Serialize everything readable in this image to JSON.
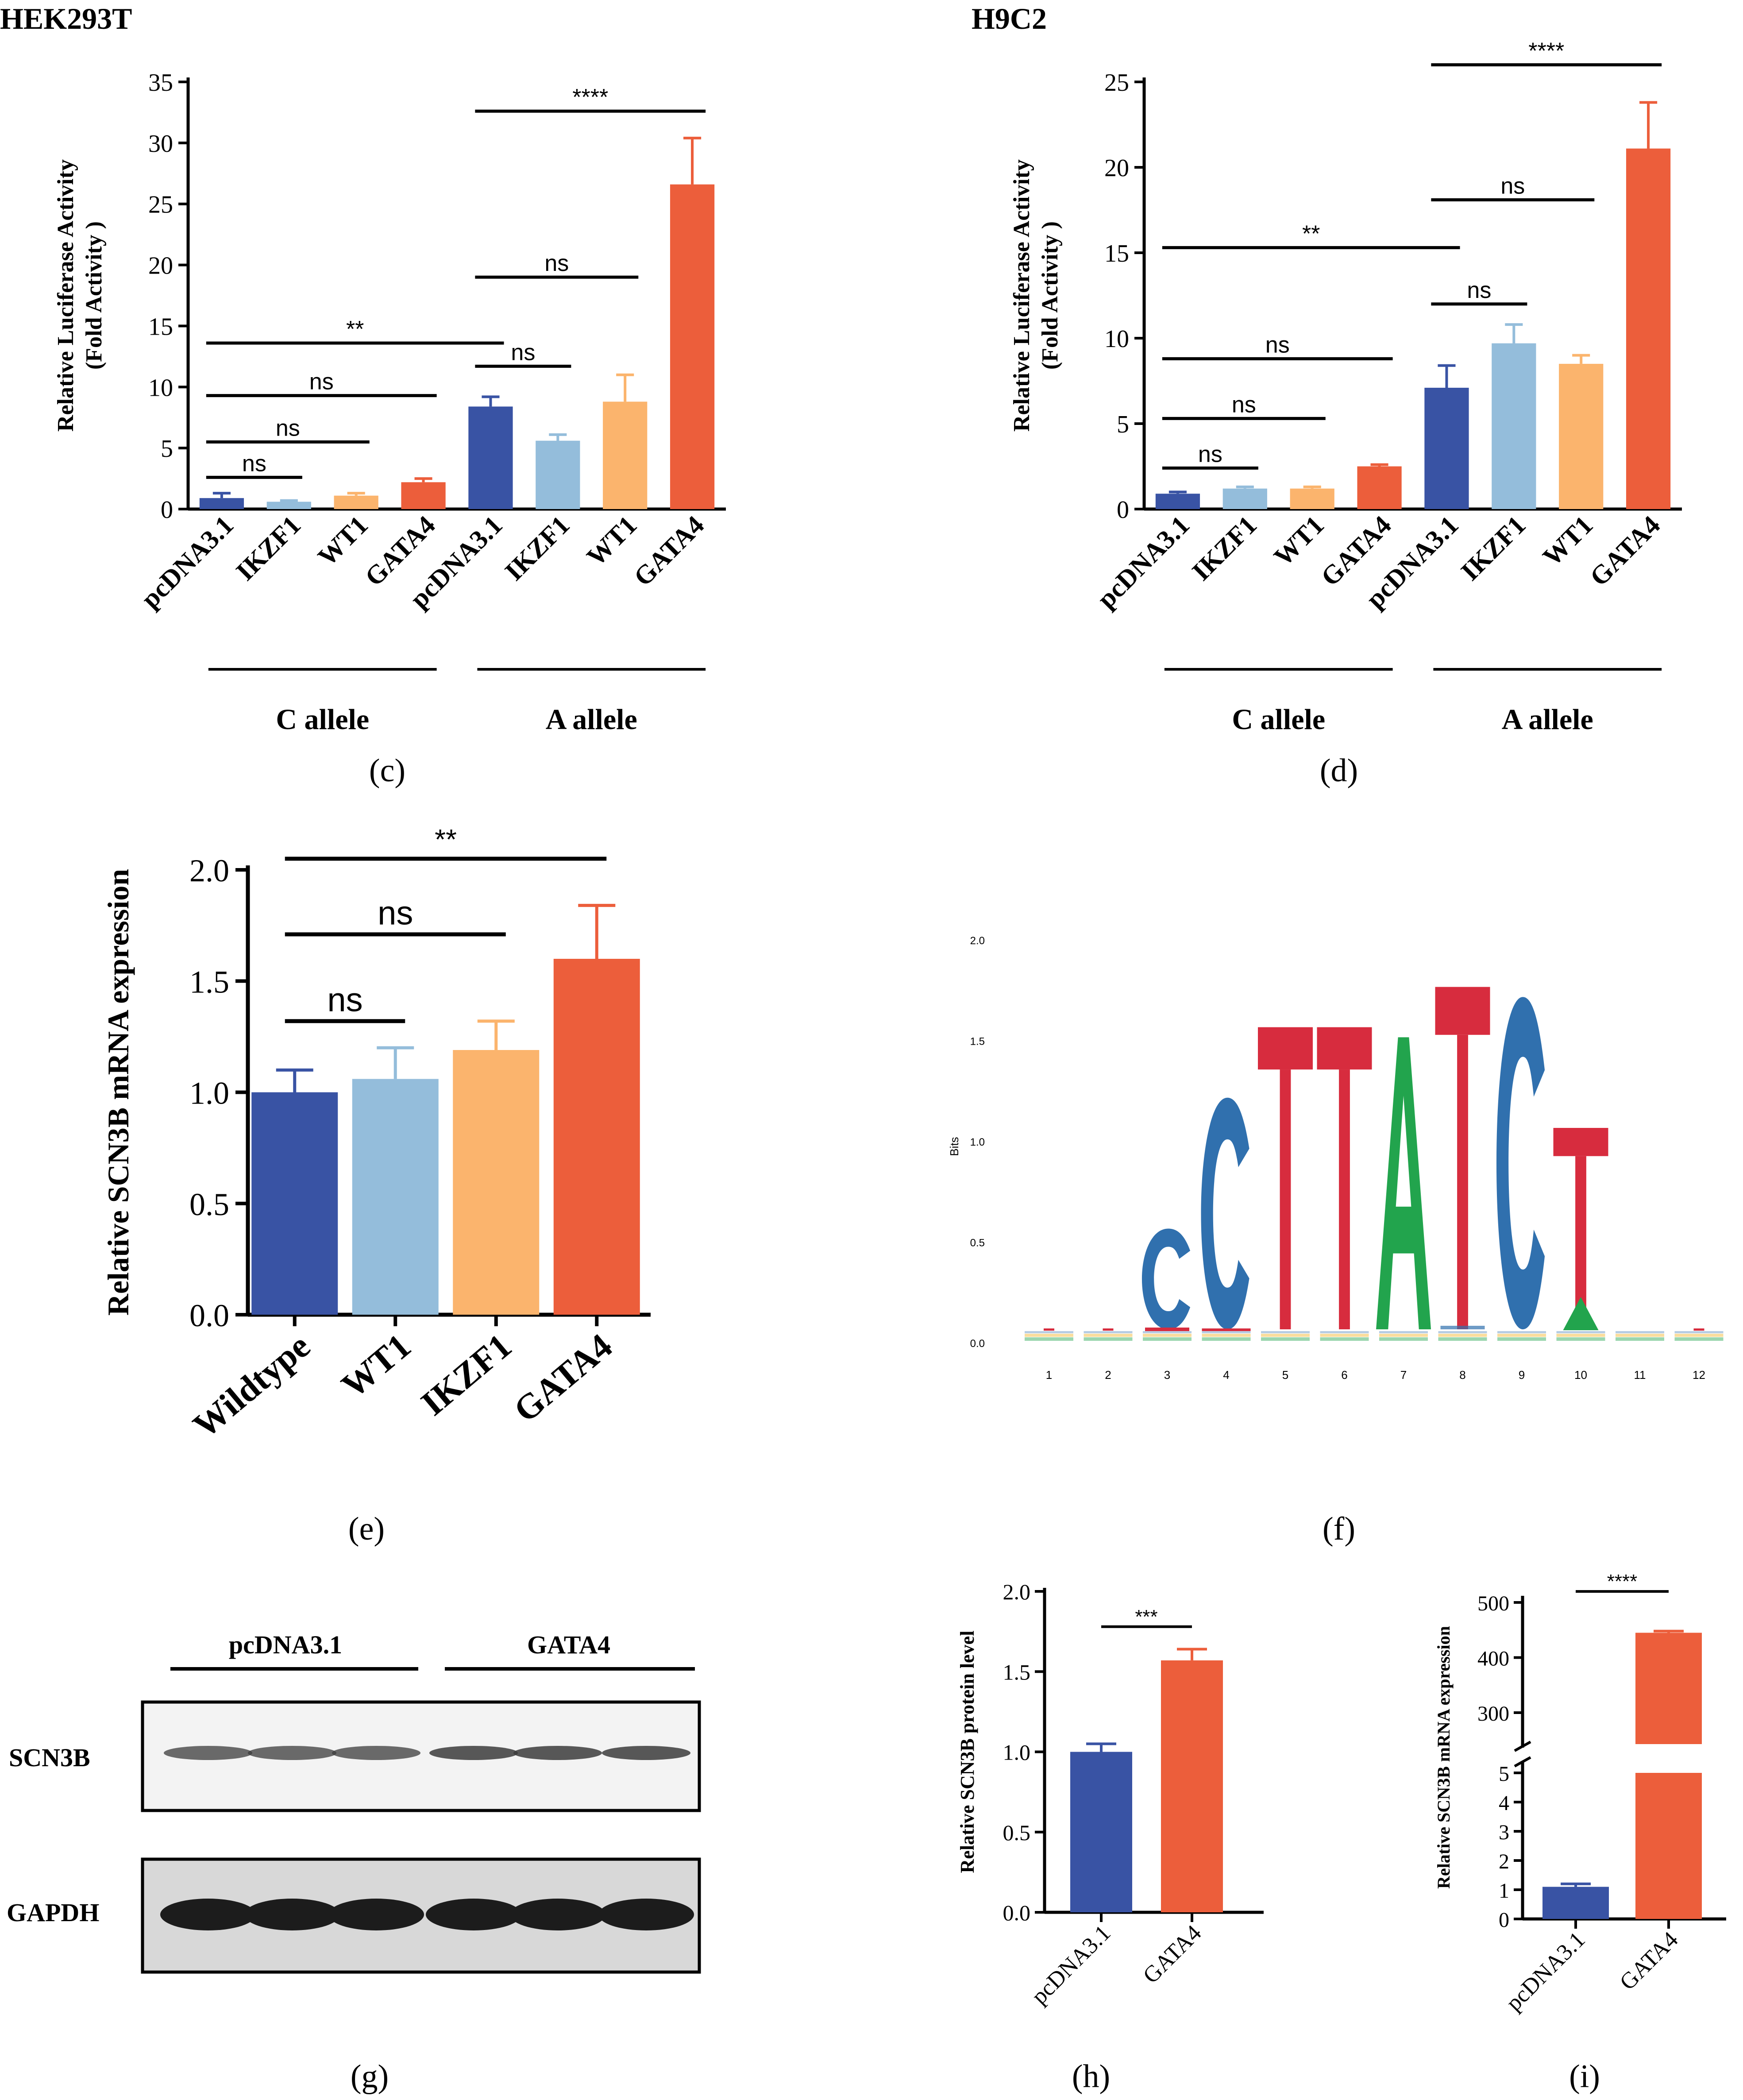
{
  "colors": {
    "navy": "#3953a4",
    "lightblue": "#94bddb",
    "peach": "#fbb46d",
    "orange": "#ec5e3b",
    "logoC": "#3070ae",
    "logoT": "#d72c3e",
    "logoA": "#22a44d",
    "logoG": "#f4b325",
    "blot": "#1c1c1c"
  },
  "chart_data": [
    {
      "id": "c",
      "type": "bar",
      "panel": "(c)",
      "title": "HEK293T",
      "ylabel_line1": "Relative Luciferase Activity",
      "ylabel_line2": "(Fold Activity )",
      "ylim": [
        0,
        35
      ],
      "yticks": [
        0,
        5,
        10,
        15,
        20,
        25,
        30,
        35
      ],
      "categories": [
        "pcDNA3.1",
        "IKZF1",
        "WT1",
        "GATA4",
        "pcDNA3.1",
        "IKZF1",
        "WT1",
        "GATA4"
      ],
      "values": [
        0.9,
        0.6,
        1.1,
        2.2,
        8.4,
        5.6,
        8.8,
        26.6
      ],
      "errors": [
        0.4,
        0.1,
        0.2,
        0.3,
        0.8,
        0.5,
        2.2,
        3.8
      ],
      "groups": [
        "C allele",
        "A allele"
      ],
      "sig": [
        {
          "from": 0,
          "to": 1,
          "y": 2.6,
          "label": "ns"
        },
        {
          "from": 0,
          "to": 2,
          "y": 5.5,
          "label": "ns"
        },
        {
          "from": 0,
          "to": 3,
          "y": 9.3,
          "label": "ns"
        },
        {
          "from": 0,
          "to": 4,
          "y": 13.6,
          "label": "**"
        },
        {
          "from": 4,
          "to": 5,
          "y": 11.7,
          "label": "ns"
        },
        {
          "from": 4,
          "to": 6,
          "y": 19.0,
          "label": "ns"
        },
        {
          "from": 4,
          "to": 7,
          "y": 32.6,
          "label": "****"
        }
      ]
    },
    {
      "id": "d",
      "type": "bar",
      "panel": "(d)",
      "title": "H9C2",
      "ylabel_line1": "Relative Luciferase Activity",
      "ylabel_line2": "(Fold Activity )",
      "ylim": [
        0,
        25
      ],
      "yticks": [
        0,
        5,
        10,
        15,
        20,
        25
      ],
      "categories": [
        "pcDNA3.1",
        "IKZF1",
        "WT1",
        "GATA4",
        "pcDNA3.1",
        "IKZF1",
        "WT1",
        "GATA4"
      ],
      "values": [
        0.9,
        1.2,
        1.2,
        2.5,
        7.1,
        9.7,
        8.5,
        21.1
      ],
      "errors": [
        0.1,
        0.1,
        0.1,
        0.1,
        1.3,
        1.1,
        0.5,
        2.7
      ],
      "groups": [
        "C allele",
        "A allele"
      ],
      "sig": [
        {
          "from": 0,
          "to": 1,
          "y": 2.4,
          "label": "ns"
        },
        {
          "from": 0,
          "to": 2,
          "y": 5.3,
          "label": "ns"
        },
        {
          "from": 0,
          "to": 3,
          "y": 8.8,
          "label": "ns"
        },
        {
          "from": 0,
          "to": 4,
          "y": 15.3,
          "label": "**"
        },
        {
          "from": 4,
          "to": 5,
          "y": 12.0,
          "label": "ns"
        },
        {
          "from": 4,
          "to": 6,
          "y": 18.1,
          "label": "ns"
        },
        {
          "from": 4,
          "to": 7,
          "y": 26.0,
          "label": "****"
        }
      ]
    },
    {
      "id": "e",
      "type": "bar",
      "panel": "(e)",
      "ylabel": "Relative SCN3B mRNA expression",
      "ylim": [
        0,
        2.0
      ],
      "yticks": [
        "0.0",
        "0.5",
        "1.0",
        "1.5",
        "2.0"
      ],
      "categories": [
        "Wildtype",
        "WT1",
        "IKZF1",
        "GATA4"
      ],
      "values": [
        1.0,
        1.06,
        1.19,
        1.6
      ],
      "errors": [
        0.1,
        0.14,
        0.13,
        0.24
      ],
      "sig": [
        {
          "from": 0,
          "to": 1,
          "y": 1.32,
          "label": "ns"
        },
        {
          "from": 0,
          "to": 2,
          "y": 1.71,
          "label": "ns"
        },
        {
          "from": 0,
          "to": 3,
          "y": 2.05,
          "label": "**"
        }
      ]
    },
    {
      "id": "f",
      "type": "sequence-logo",
      "panel": "(f)",
      "ylabel": "Bits",
      "yticks": [
        "0.0",
        "0.5",
        "1.0",
        "1.5",
        "2.0"
      ],
      "positions": [
        "1",
        "2",
        "3",
        "4",
        "5",
        "6",
        "7",
        "8",
        "9",
        "10",
        "11",
        "12"
      ],
      "consensus": [
        "",
        "",
        "C",
        "C",
        "T",
        "T",
        "A",
        "T",
        "C",
        "T",
        "",
        ""
      ],
      "heights": [
        0,
        0,
        0.5,
        1.15,
        1.5,
        1.5,
        1.45,
        1.7,
        1.65,
        1.0,
        0,
        0
      ]
    },
    {
      "id": "h",
      "type": "bar",
      "panel": "(h)",
      "ylabel": "Relative SCN3B protein level",
      "ylim": [
        0,
        2.0
      ],
      "yticks": [
        "0.0",
        "0.5",
        "1.0",
        "1.5",
        "2.0"
      ],
      "categories": [
        "pcDNA3.1",
        "GATA4"
      ],
      "values": [
        1.0,
        1.57
      ],
      "errors": [
        0.05,
        0.07
      ],
      "sig": [
        {
          "from": 0,
          "to": 1,
          "y": 1.78,
          "label": "***"
        }
      ]
    },
    {
      "id": "i",
      "type": "bar",
      "panel": "(i)",
      "ylabel": "Relative SCN3B mRNA expression",
      "axis_break": true,
      "yticks_low": [
        "0",
        "1",
        "2",
        "3",
        "4",
        "5"
      ],
      "yticks_high": [
        "300",
        "400",
        "500"
      ],
      "categories": [
        "pcDNA3.1",
        "GATA4"
      ],
      "values": [
        1.1,
        445
      ],
      "errors": [
        0.1,
        3
      ],
      "sig": [
        {
          "from": 0,
          "to": 1,
          "label": "****"
        }
      ]
    }
  ],
  "panel_g": {
    "panel": "(g)",
    "groups": [
      "pcDNA3.1",
      "GATA4"
    ],
    "rows": [
      "SCN3B",
      "GAPDH"
    ]
  }
}
